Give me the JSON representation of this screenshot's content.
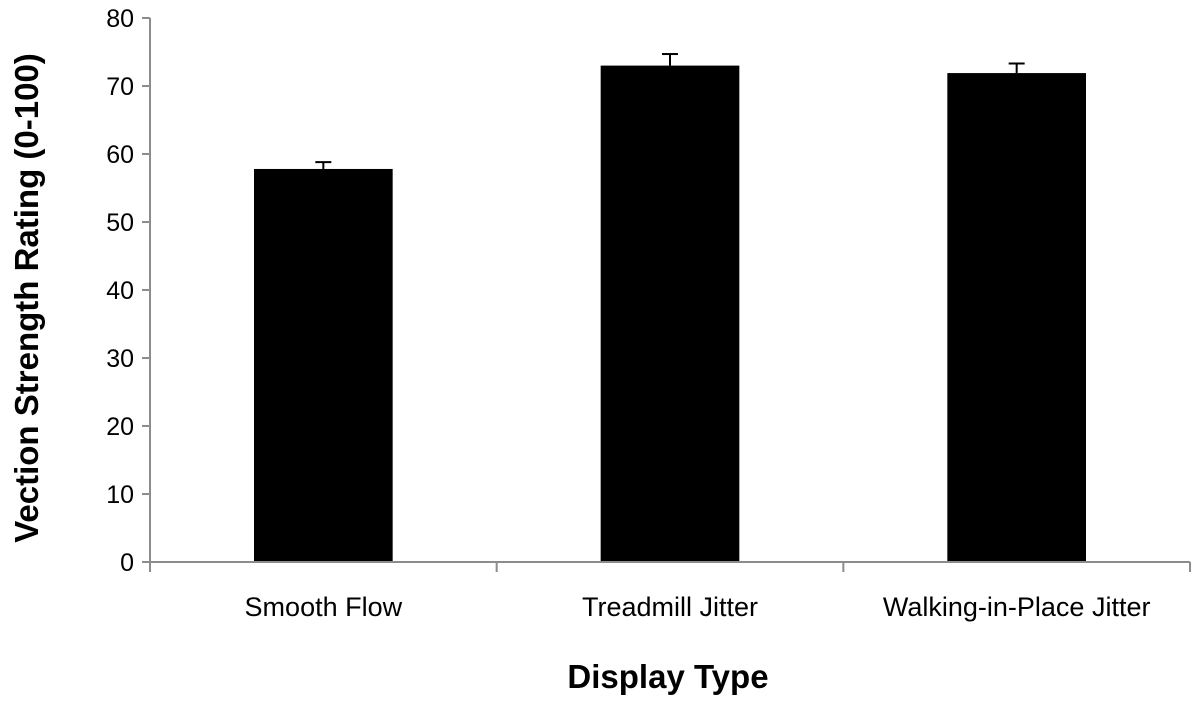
{
  "chart_data": {
    "type": "bar",
    "categories": [
      "Smooth Flow",
      "Treadmill Jitter",
      "Walking-in-Place Jitter"
    ],
    "values": [
      57.8,
      73.0,
      71.9
    ],
    "error_bars": [
      1.0,
      1.7,
      1.4
    ],
    "xlabel": "Display Type",
    "ylabel": "Vection Strength Rating (0-100)",
    "ylim": [
      0,
      80
    ],
    "yticks": [
      0,
      10,
      20,
      30,
      40,
      50,
      60,
      70,
      80
    ],
    "grid": false,
    "legend": "none",
    "bar_color": "#000000",
    "axis_color": "#8c8c8c"
  }
}
